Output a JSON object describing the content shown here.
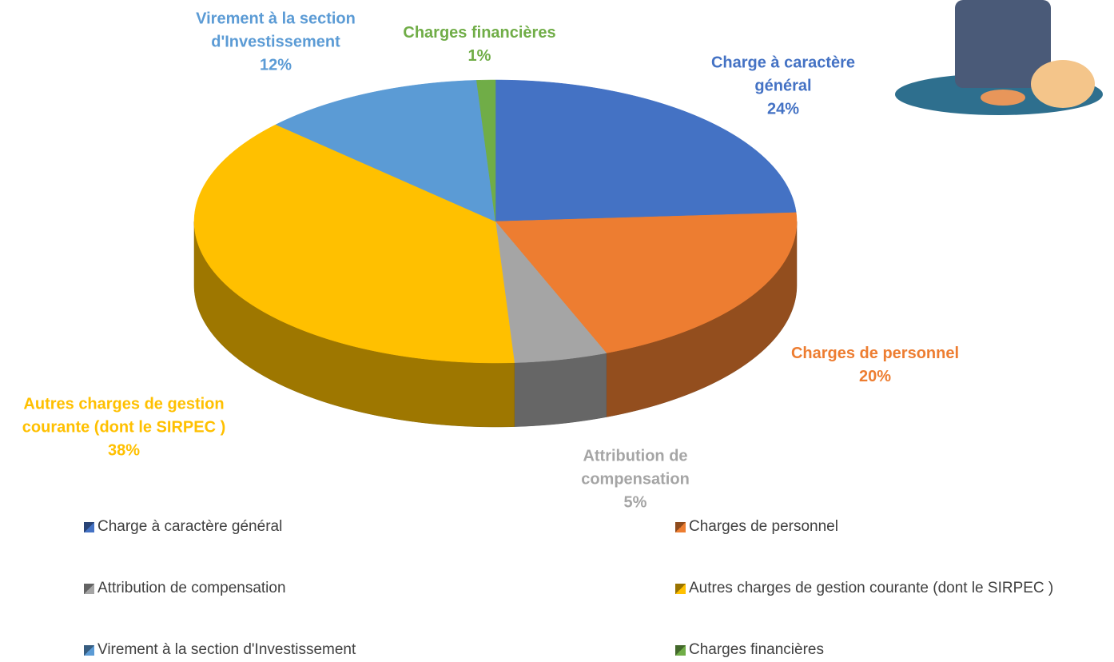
{
  "chart_data": {
    "type": "pie3d",
    "categories": [
      "Charge à caractère général",
      "Charges de personnel",
      "Attribution de compensation",
      "Autres charges de gestion courante (dont le SIRPEC )",
      "Virement à la section d'Investissement",
      "Charges financières"
    ],
    "values": [
      24,
      20,
      5,
      38,
      12,
      1
    ],
    "value_labels": [
      "24%",
      "20%",
      "5%",
      "38%",
      "12%",
      "1%"
    ],
    "colors": [
      "#4472c4",
      "#ed7d31",
      "#a5a5a5",
      "#ffc000",
      "#5b9bd5",
      "#70ad47"
    ]
  }
}
